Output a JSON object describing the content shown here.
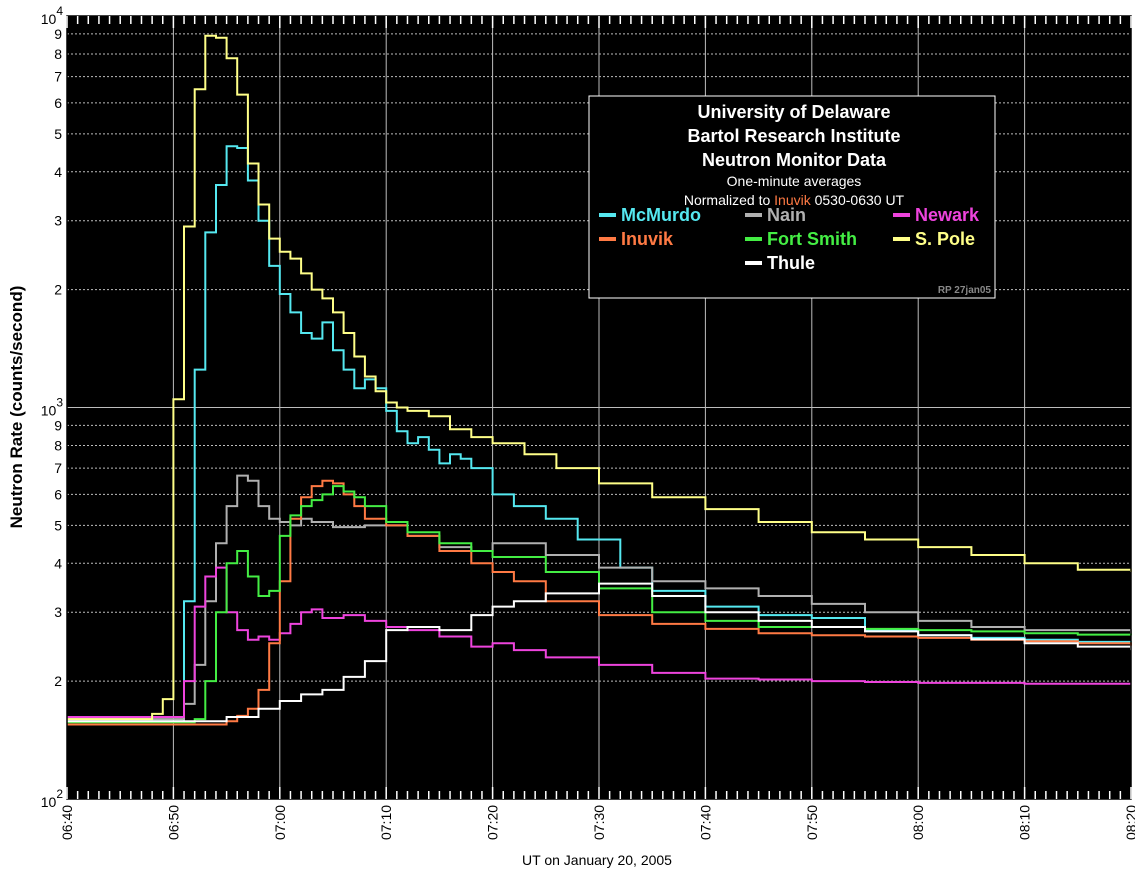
{
  "chart_data": {
    "type": "line",
    "step": true,
    "ylabel": "Neutron Rate (counts/second)",
    "xlabel": "UT on January 20, 2005",
    "yscale": "log",
    "ylim": [
      100,
      10000
    ],
    "xlim": [
      0,
      100
    ],
    "x_unit": "minutes after 06:40 UT",
    "grid": true,
    "background": "#000000",
    "x_ticks": [
      {
        "value": 0,
        "label": "06:40"
      },
      {
        "value": 10,
        "label": "06:50"
      },
      {
        "value": 20,
        "label": "07:00"
      },
      {
        "value": 30,
        "label": "07:10"
      },
      {
        "value": 40,
        "label": "07:20"
      },
      {
        "value": 50,
        "label": "07:30"
      },
      {
        "value": 60,
        "label": "07:40"
      },
      {
        "value": 70,
        "label": "07:50"
      },
      {
        "value": 80,
        "label": "08:00"
      },
      {
        "value": 90,
        "label": "08:10"
      },
      {
        "value": 100,
        "label": "08:20"
      }
    ],
    "y_major_labels": [
      {
        "value": 100,
        "base": "10",
        "exp": "2"
      },
      {
        "value": 1000,
        "base": "10",
        "exp": "3"
      },
      {
        "value": 10000,
        "base": "10",
        "exp": "4"
      }
    ],
    "y_minor_labels": [
      "2",
      "3",
      "4",
      "5",
      "6",
      "7",
      "8",
      "9"
    ],
    "legend": {
      "title_lines": [
        "University of Delaware",
        "Bartol Research Institute",
        "Neutron Monitor Data"
      ],
      "subtitle1": "One-minute averages",
      "norm_prefix": "Normalized to ",
      "norm_station": "Inuvik",
      "norm_suffix": " 0530-0630 UT",
      "credit": "RP 27jan05",
      "placement": "top-right"
    },
    "series": [
      {
        "name": "McMurdo",
        "color": "#55e8f0",
        "x": [
          0,
          10,
          11,
          12,
          13,
          14,
          15,
          16,
          17,
          18,
          19,
          20,
          21,
          22,
          23,
          24,
          25,
          26,
          27,
          28,
          29,
          30,
          31,
          32,
          33,
          34,
          35,
          36,
          37,
          38,
          40,
          42,
          45,
          48,
          52,
          55,
          60,
          65,
          70,
          75,
          80,
          85,
          90,
          95,
          100
        ],
        "y": [
          158,
          158,
          320,
          1250,
          2800,
          3700,
          4650,
          4600,
          3800,
          3000,
          2300,
          1950,
          1750,
          1550,
          1500,
          1650,
          1400,
          1250,
          1120,
          1180,
          1120,
          980,
          870,
          810,
          840,
          780,
          720,
          760,
          740,
          700,
          600,
          560,
          520,
          460,
          390,
          340,
          310,
          295,
          290,
          270,
          262,
          258,
          255,
          252,
          250
        ]
      },
      {
        "name": "Nain",
        "color": "#b0b0b0",
        "x": [
          0,
          10,
          11,
          12,
          13,
          14,
          15,
          16,
          17,
          18,
          19,
          20,
          21,
          22,
          23,
          25,
          28,
          30,
          32,
          35,
          38,
          40,
          45,
          50,
          55,
          60,
          65,
          70,
          75,
          80,
          85,
          90,
          95,
          100
        ],
        "y": [
          160,
          160,
          175,
          220,
          320,
          450,
          560,
          670,
          650,
          560,
          520,
          510,
          500,
          520,
          510,
          495,
          500,
          500,
          470,
          440,
          430,
          450,
          420,
          390,
          360,
          345,
          330,
          315,
          300,
          285,
          275,
          270,
          270,
          262
        ]
      },
      {
        "name": "Newark",
        "color": "#ee44dd",
        "x": [
          0,
          10,
          11,
          12,
          13,
          14,
          15,
          16,
          17,
          18,
          19,
          20,
          21,
          22,
          23,
          24,
          25,
          26,
          28,
          30,
          32,
          35,
          38,
          40,
          42,
          45,
          50,
          55,
          60,
          65,
          70,
          75,
          80,
          85,
          90,
          95,
          100
        ],
        "y": [
          162,
          162,
          200,
          310,
          370,
          390,
          300,
          270,
          255,
          260,
          255,
          265,
          280,
          300,
          305,
          290,
          290,
          295,
          285,
          275,
          270,
          260,
          245,
          250,
          240,
          230,
          220,
          210,
          203,
          202,
          200,
          199,
          198,
          198,
          197,
          197,
          197
        ]
      },
      {
        "name": "Inuvik",
        "color": "#ff7a44",
        "x": [
          0,
          10,
          15,
          16,
          17,
          18,
          19,
          20,
          21,
          22,
          23,
          24,
          25,
          26,
          27,
          28,
          30,
          32,
          35,
          38,
          40,
          42,
          45,
          50,
          55,
          60,
          65,
          70,
          75,
          80,
          85,
          90,
          95,
          100
        ],
        "y": [
          155,
          155,
          158,
          163,
          170,
          190,
          250,
          360,
          520,
          590,
          630,
          650,
          640,
          600,
          560,
          520,
          500,
          470,
          430,
          400,
          380,
          360,
          320,
          295,
          280,
          272,
          265,
          262,
          260,
          258,
          255,
          253,
          250,
          245
        ]
      },
      {
        "name": "Fort Smith",
        "color": "#44ee44",
        "x": [
          0,
          10,
          12,
          13,
          14,
          15,
          16,
          17,
          18,
          19,
          20,
          21,
          22,
          23,
          24,
          25,
          26,
          27,
          28,
          30,
          32,
          35,
          38,
          40,
          45,
          50,
          55,
          60,
          65,
          70,
          75,
          80,
          85,
          90,
          95,
          100
        ],
        "y": [
          157,
          157,
          160,
          200,
          300,
          400,
          430,
          370,
          330,
          340,
          470,
          530,
          560,
          580,
          600,
          630,
          610,
          590,
          560,
          510,
          480,
          450,
          430,
          415,
          380,
          345,
          300,
          285,
          275,
          275,
          272,
          270,
          268,
          265,
          263,
          262
        ]
      },
      {
        "name": "S. Pole",
        "color": "#ffff88",
        "x": [
          0,
          8,
          9,
          10,
          11,
          12,
          13,
          14,
          15,
          16,
          17,
          18,
          19,
          20,
          21,
          22,
          23,
          24,
          25,
          26,
          27,
          28,
          29,
          30,
          31,
          32,
          34,
          36,
          38,
          40,
          43,
          46,
          50,
          55,
          60,
          65,
          70,
          75,
          80,
          85,
          90,
          95,
          100
        ],
        "y": [
          160,
          165,
          180,
          1050,
          2900,
          6500,
          8900,
          8800,
          7800,
          6300,
          4200,
          3300,
          2700,
          2500,
          2400,
          2200,
          2000,
          1900,
          1750,
          1550,
          1350,
          1200,
          1100,
          1030,
          1000,
          980,
          950,
          880,
          840,
          810,
          760,
          700,
          640,
          590,
          550,
          510,
          480,
          460,
          440,
          420,
          400,
          385,
          380
        ]
      },
      {
        "name": "Thule",
        "color": "#ffffff",
        "x": [
          0,
          12,
          15,
          18,
          20,
          22,
          24,
          26,
          28,
          30,
          32,
          35,
          38,
          40,
          42,
          45,
          50,
          55,
          60,
          65,
          70,
          75,
          80,
          85,
          90,
          95,
          100
        ],
        "y": [
          158,
          158,
          162,
          170,
          178,
          185,
          190,
          205,
          225,
          270,
          275,
          270,
          295,
          310,
          320,
          335,
          355,
          330,
          300,
          285,
          275,
          268,
          262,
          256,
          250,
          245,
          240
        ]
      }
    ],
    "legend_rows": [
      [
        "McMurdo",
        "Nain",
        "Newark"
      ],
      [
        "Inuvik",
        "Fort Smith",
        "S. Pole"
      ],
      [
        null,
        "Thule",
        null
      ]
    ]
  }
}
